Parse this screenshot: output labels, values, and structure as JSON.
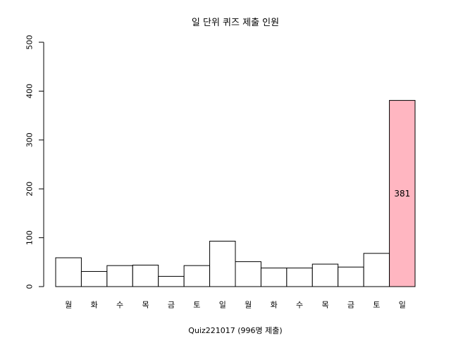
{
  "chart_data": {
    "type": "bar",
    "title": "일 단위 퀴즈 제출 인원",
    "xlabel": "Quiz221017 (996명 제출)",
    "ylabel": "",
    "categories": [
      "월",
      "화",
      "수",
      "목",
      "금",
      "토",
      "일",
      "월",
      "화",
      "수",
      "목",
      "금",
      "토",
      "일"
    ],
    "values": [
      59,
      31,
      43,
      44,
      21,
      43,
      93,
      51,
      38,
      38,
      46,
      40,
      68,
      381
    ],
    "ylim": [
      0,
      500
    ],
    "yticks": [
      "0",
      "100",
      "200",
      "300",
      "400",
      "500"
    ],
    "highlight": {
      "index": 13,
      "label": "381",
      "color": "#ffb6c1"
    },
    "bar_color": "#ffffff",
    "grid": false
  }
}
